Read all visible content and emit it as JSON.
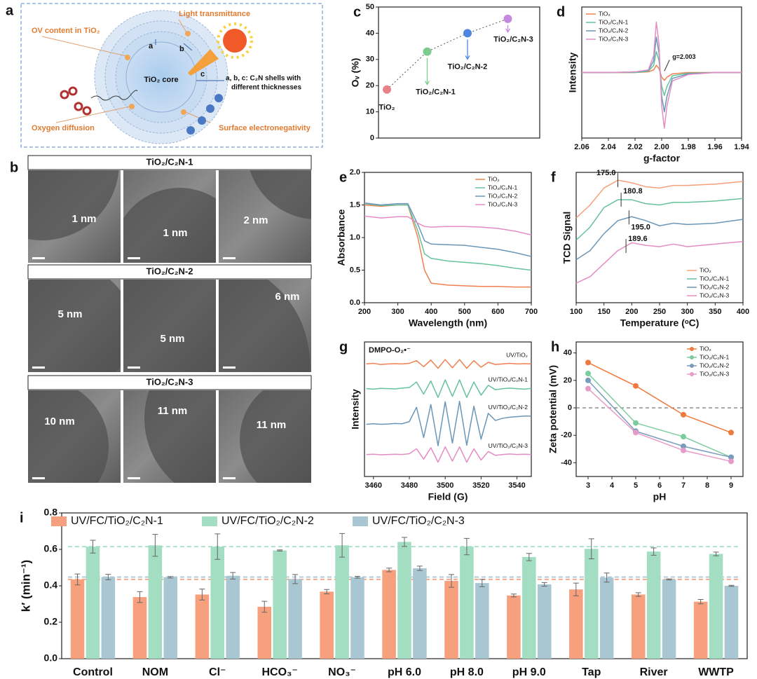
{
  "schematic": {
    "panel": "a",
    "labels": [
      "OV content in TiO₂",
      "Light transmittance",
      "a",
      "b",
      "c",
      "TiO₂ core",
      "a, b, c: C₂N shells with",
      "different thicknesses",
      "Oxygen diffusion",
      "Surface electronegativity"
    ]
  },
  "micrographs": {
    "panel": "b",
    "headers": [
      "TiO₂/C₂N-1",
      "TiO₂/C₂N-2",
      "TiO₂/C₂N-3"
    ],
    "scale_labels": [
      "1 nm",
      "1 nm",
      "2 nm",
      "5 nm",
      "5 nm",
      "6 nm",
      "10 nm",
      "11 nm",
      "11 nm"
    ]
  },
  "chart_data": [
    {
      "panel": "c",
      "type": "scatter",
      "ylabel": "Oᵥ (%)",
      "categories": [
        "TiO₂",
        "TiO₂/C₂N-1",
        "TiO₂/C₂N-2",
        "TiO₂/C₂N-3"
      ],
      "values": [
        18.5,
        33,
        40,
        45.5
      ],
      "colors": [
        "#e8828a",
        "#7dcc8e",
        "#4f86e0",
        "#c58ae0"
      ],
      "ylim": [
        0,
        50
      ],
      "yticks": [
        0,
        10,
        20,
        30,
        40,
        50
      ]
    },
    {
      "panel": "d",
      "type": "line",
      "xlabel": "g-factor",
      "ylabel": "Intensity",
      "annotation": "g=2.003",
      "legend": "upper left",
      "x": [
        2.06,
        2.04,
        2.02,
        2.01,
        2.006,
        2.004,
        2.002,
        2.0,
        1.998,
        1.996,
        1.992,
        1.98,
        1.96,
        1.94
      ],
      "xlim": [
        2.06,
        1.94
      ],
      "xticks": [
        2.06,
        2.04,
        2.02,
        {
          "value": 2,
          "label": "2.00"
        },
        1.98,
        1.96,
        1.94
      ],
      "ylim": [
        -1,
        1
      ],
      "series": [
        {
          "name": "TiO₂",
          "color": "#f08050",
          "values": [
            0,
            0,
            0,
            0.01,
            0.04,
            0.11,
            0.06,
            -0.07,
            -0.12,
            -0.07,
            -0.02,
            0,
            0,
            0
          ]
        },
        {
          "name": "TiO₂/C₂N-1",
          "color": "#66c29a",
          "values": [
            0,
            0,
            0,
            0.02,
            0.11,
            0.32,
            0.18,
            -0.21,
            -0.35,
            -0.21,
            -0.05,
            -0.01,
            0,
            0
          ]
        },
        {
          "name": "TiO₂/C₂N-2",
          "color": "#6a97b8",
          "values": [
            0,
            0,
            0.01,
            0.03,
            0.18,
            0.54,
            0.3,
            -0.36,
            -0.6,
            -0.36,
            -0.09,
            -0.02,
            0,
            0
          ]
        },
        {
          "name": "TiO₂/C₂N-3",
          "color": "#e48cc4",
          "values": [
            0,
            0,
            0.01,
            0.04,
            0.26,
            0.77,
            0.43,
            -0.51,
            -0.85,
            -0.51,
            -0.13,
            -0.03,
            0,
            0
          ]
        }
      ]
    },
    {
      "panel": "e",
      "type": "line",
      "xlabel": "Wavelength (nm)",
      "ylabel": "Absorbance",
      "legend": "upper right",
      "x": [
        200,
        250,
        300,
        330,
        360,
        380,
        400,
        450,
        500,
        550,
        600,
        650,
        700
      ],
      "xlim": [
        200,
        700
      ],
      "xticks": [
        200,
        300,
        400,
        500,
        600,
        700
      ],
      "ylim": [
        0,
        2
      ],
      "yticks": [
        {
          "value": 0,
          "label": "0.0"
        },
        0.5,
        {
          "value": 1,
          "label": "1.0"
        },
        1.5,
        {
          "value": 2,
          "label": "2.0"
        }
      ],
      "series": [
        {
          "name": "TiO₂",
          "color": "#f08050",
          "values": [
            1.5,
            1.48,
            1.5,
            1.5,
            1.0,
            0.5,
            0.3,
            0.27,
            0.26,
            0.25,
            0.25,
            0.24,
            0.24
          ]
        },
        {
          "name": "TiO₂/C₂N-1",
          "color": "#66c29a",
          "values": [
            1.52,
            1.49,
            1.5,
            1.5,
            1.1,
            0.75,
            0.68,
            0.64,
            0.62,
            0.6,
            0.57,
            0.53,
            0.5
          ]
        },
        {
          "name": "TiO₂/C₂N-2",
          "color": "#6a97b8",
          "values": [
            1.53,
            1.5,
            1.52,
            1.52,
            1.2,
            0.95,
            0.9,
            0.89,
            0.88,
            0.85,
            0.82,
            0.77,
            0.71
          ]
        },
        {
          "name": "TiO₂/C₂N-3",
          "color": "#e48cc4",
          "values": [
            1.33,
            1.3,
            1.32,
            1.32,
            1.22,
            1.17,
            1.16,
            1.17,
            1.17,
            1.16,
            1.14,
            1.1,
            1.04
          ]
        }
      ]
    },
    {
      "panel": "f",
      "type": "line",
      "xlabel": "Temperature (ᵒC)",
      "ylabel": "TCD Signal",
      "legend": "lower right",
      "x": [
        100,
        125,
        150,
        175,
        200,
        225,
        250,
        275,
        300,
        350,
        400
      ],
      "xlim": [
        100,
        400
      ],
      "xticks": [
        100,
        150,
        200,
        250,
        300,
        350,
        400
      ],
      "ylim": [
        0,
        10
      ],
      "peaks": {
        "values": [
          175,
          180.8,
          195,
          189.6
        ],
        "value_labels": [
          "175.0",
          "180.8",
          "195.0",
          "189.6"
        ]
      },
      "series": [
        {
          "name": "TiO₂",
          "color": "#f4a07a",
          "values": [
            6.5,
            7.5,
            8.8,
            9.4,
            9.2,
            8.9,
            8.8,
            9.0,
            9.0,
            9.1,
            9.3
          ]
        },
        {
          "name": "TiO₂/C₂N-1",
          "color": "#66c29a",
          "values": [
            4.8,
            5.8,
            7.3,
            7.9,
            7.9,
            7.6,
            7.5,
            7.7,
            7.7,
            7.8,
            8.0
          ]
        },
        {
          "name": "TiO₂/C₂N-2",
          "color": "#6a97b8",
          "values": [
            3.3,
            4.0,
            5.3,
            6.3,
            6.6,
            6.3,
            5.9,
            6.1,
            6.0,
            6.1,
            6.4
          ]
        },
        {
          "name": "TiO₂/C₂N-3",
          "color": "#e48cc4",
          "values": [
            1.5,
            2.0,
            3.0,
            4.0,
            4.6,
            4.4,
            4.3,
            4.5,
            4.3,
            4.5,
            4.7
          ]
        }
      ]
    },
    {
      "panel": "g",
      "type": "line",
      "title": "DMPO-O₂•⁻",
      "xlabel": "Field (G)",
      "ylabel": "Intensity",
      "series_labels": true,
      "x": [
        3456,
        3460,
        3464,
        3468,
        3472,
        3476,
        3480,
        3484,
        3488,
        3492,
        3496,
        3500,
        3504,
        3508,
        3512,
        3516,
        3520,
        3524,
        3528,
        3532,
        3536,
        3540,
        3544,
        3548
      ],
      "xlim": [
        3455,
        3548
      ],
      "xticks": [
        3460,
        3480,
        3500,
        3520,
        3540
      ],
      "ylim": [
        -0.5,
        4.4
      ],
      "series": [
        {
          "name": "UV/TiO₂",
          "color": "#f08050",
          "values": [
            3.6,
            3.62,
            3.58,
            3.6,
            3.61,
            3.6,
            3.62,
            3.72,
            3.5,
            3.74,
            3.44,
            3.76,
            3.46,
            3.76,
            3.44,
            3.72,
            3.48,
            3.66,
            3.58,
            3.6,
            3.62,
            3.6,
            3.61,
            3.6
          ]
        },
        {
          "name": "UV/TiO₂/C₂N-1",
          "color": "#66c29a",
          "values": [
            2.7,
            2.68,
            2.71,
            2.7,
            2.69,
            2.72,
            2.74,
            2.94,
            2.5,
            2.98,
            2.38,
            3.02,
            2.42,
            3.02,
            2.38,
            2.94,
            2.46,
            2.82,
            2.66,
            2.7,
            2.72,
            2.7,
            2.68,
            2.71
          ]
        },
        {
          "name": "UV/TiO₂/C₂N-2",
          "color": "#6a97b8",
          "values": [
            1.4,
            1.42,
            1.4,
            1.41,
            1.43,
            1.42,
            1.5,
            2.02,
            0.92,
            2.12,
            0.62,
            2.22,
            0.72,
            2.24,
            0.64,
            2.06,
            0.86,
            1.8,
            1.54,
            1.62,
            1.66,
            1.68,
            1.7,
            1.7
          ]
        },
        {
          "name": "UV/TiO₂/C₂N-3",
          "color": "#e48cc4",
          "values": [
            0.3,
            0.31,
            0.29,
            0.3,
            0.31,
            0.3,
            0.33,
            0.51,
            0.13,
            0.55,
            0.02,
            0.58,
            0.06,
            0.58,
            0.02,
            0.51,
            0.1,
            0.41,
            0.27,
            0.3,
            0.32,
            0.3,
            0.31,
            0.3
          ]
        }
      ]
    },
    {
      "panel": "h",
      "type": "line",
      "xlabel": "pH",
      "ylabel": "Zeta potential (mV)",
      "legend": "upper right",
      "markers": true,
      "zero_line": true,
      "x": [
        3,
        5,
        7,
        9
      ],
      "xlim": [
        2.5,
        9.5
      ],
      "xticks": [
        3,
        4,
        5,
        6,
        7,
        8,
        9
      ],
      "ylim": [
        -50,
        48
      ],
      "yticks": [
        -40,
        -20,
        0,
        20,
        40
      ],
      "series": [
        {
          "name": "TiO₂",
          "color": "#f07a3e",
          "values": [
            33,
            16,
            -5,
            -18
          ]
        },
        {
          "name": "TiO₂/C₂N-1",
          "color": "#7dcc9e",
          "values": [
            25,
            -11,
            -21,
            -36
          ]
        },
        {
          "name": "TiO₂/C₂N-2",
          "color": "#7a9cbc",
          "values": [
            20,
            -17,
            -28,
            -36
          ]
        },
        {
          "name": "TiO₂/C₂N-3",
          "color": "#e89ac8",
          "values": [
            14,
            -18,
            -31,
            -39
          ]
        }
      ]
    },
    {
      "panel": "i",
      "type": "bar",
      "ylabel": "k′ (min⁻¹)",
      "legend": "top",
      "reference_lines": true,
      "categories": [
        "Control",
        "NOM",
        "Cl⁻",
        "HCO₃⁻",
        "NO₃⁻",
        "pH 6.0",
        "pH 8.0",
        "pH 9.0",
        "Tap",
        "River",
        "WWTP"
      ],
      "ylim": [
        0,
        0.8
      ],
      "yticks": [
        {
          "value": 0,
          "label": "0.0"
        },
        0.2,
        0.4,
        0.6,
        0.8
      ],
      "series": [
        {
          "name": "UV/FC/TiO₂/C₂N-1",
          "color": "#f7a07e",
          "values": [
            0.435,
            0.338,
            0.352,
            0.285,
            0.368,
            0.487,
            0.427,
            0.347,
            0.38,
            0.352,
            0.313
          ],
          "errors": [
            0.03,
            0.03,
            0.03,
            0.03,
            0.012,
            0.01,
            0.035,
            0.008,
            0.035,
            0.01,
            0.012
          ]
        },
        {
          "name": "UV/FC/TiO₂/C₂N-2",
          "color": "#a3dec3",
          "values": [
            0.615,
            0.622,
            0.615,
            0.594,
            0.622,
            0.641,
            0.615,
            0.558,
            0.603,
            0.588,
            0.575
          ],
          "errors": [
            0.035,
            0.06,
            0.07,
            0.003,
            0.065,
            0.025,
            0.045,
            0.02,
            0.055,
            0.02,
            0.01
          ]
        },
        {
          "name": "UV/FC/TiO₂/C₂N-3",
          "color": "#a9c7d3",
          "values": [
            0.448,
            0.447,
            0.455,
            0.437,
            0.447,
            0.496,
            0.415,
            0.408,
            0.445,
            0.435,
            0.4
          ],
          "errors": [
            0.015,
            0.004,
            0.018,
            0.025,
            0.005,
            0.012,
            0.02,
            0.01,
            0.025,
            0.003,
            0.003
          ]
        }
      ]
    }
  ]
}
